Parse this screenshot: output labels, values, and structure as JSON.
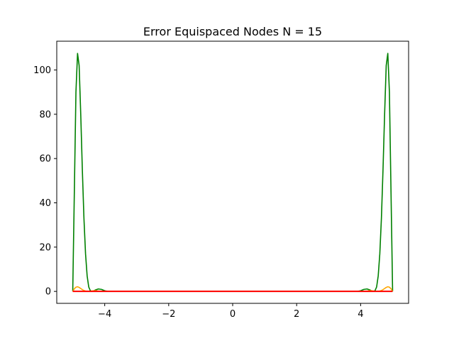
{
  "chart_data": {
    "type": "line",
    "title": "Error Equispaced Nodes N = 15",
    "xlabel": "",
    "ylabel": "",
    "xlim": [
      -5.5,
      5.5
    ],
    "ylim": [
      -5.4,
      113.0
    ],
    "grid": false,
    "x_ticks": [
      -4,
      -2,
      0,
      2,
      4
    ],
    "x_tick_labels": [
      "−4",
      "−2",
      "0",
      "2",
      "4"
    ],
    "y_ticks": [
      0,
      20,
      40,
      60,
      80,
      100
    ],
    "y_tick_labels": [
      "0",
      "20",
      "40",
      "60",
      "80",
      "100"
    ],
    "series": [
      {
        "color": "#008000",
        "x": [
          -5.0,
          -4.95,
          -4.9,
          -4.85,
          -4.8,
          -4.75,
          -4.7,
          -4.65,
          -4.6,
          -4.55,
          -4.5,
          -4.45,
          -4.4,
          -4.35,
          -4.3,
          -4.2,
          -4.1,
          -4.0,
          -3.9,
          -3.8,
          -3.7,
          -3.5,
          -3.0,
          0.0,
          3.0,
          3.5,
          3.7,
          3.8,
          3.9,
          4.0,
          4.1,
          4.2,
          4.3,
          4.35,
          4.4,
          4.45,
          4.5,
          4.55,
          4.6,
          4.65,
          4.7,
          4.75,
          4.8,
          4.85,
          4.9,
          4.95,
          5.0
        ],
        "y": [
          0,
          45,
          90,
          107.5,
          102,
          80,
          55,
          33,
          17,
          7,
          2,
          0.3,
          0,
          0.2,
          0.6,
          1.1,
          0.9,
          0.3,
          0,
          0,
          0,
          0,
          0,
          0,
          0,
          0,
          0,
          0,
          0,
          0.3,
          0.9,
          1.1,
          0.6,
          0.2,
          0,
          0.3,
          2,
          7,
          17,
          33,
          55,
          80,
          102,
          107.5,
          90,
          45,
          0
        ]
      },
      {
        "color": "#ffa500",
        "x": [
          -5.0,
          -4.95,
          -4.9,
          -4.85,
          -4.8,
          -4.75,
          -4.7,
          -4.65,
          -4.6,
          -4.5,
          -4.4,
          -4.3,
          -4.2,
          -4.0,
          0.0,
          4.0,
          4.2,
          4.3,
          4.4,
          4.5,
          4.6,
          4.65,
          4.7,
          4.75,
          4.8,
          4.85,
          4.9,
          4.95,
          5.0
        ],
        "y": [
          0,
          1.2,
          1.9,
          2.1,
          1.8,
          1.3,
          0.8,
          0.4,
          0.15,
          0,
          0.2,
          0.35,
          0.15,
          0,
          0,
          0,
          0.15,
          0.35,
          0.2,
          0,
          0.15,
          0.4,
          0.8,
          1.3,
          1.8,
          2.1,
          1.9,
          1.2,
          0
        ]
      },
      {
        "color": "#ff0000",
        "x": [
          -5.0,
          5.0
        ],
        "y": [
          0,
          0
        ]
      }
    ]
  }
}
